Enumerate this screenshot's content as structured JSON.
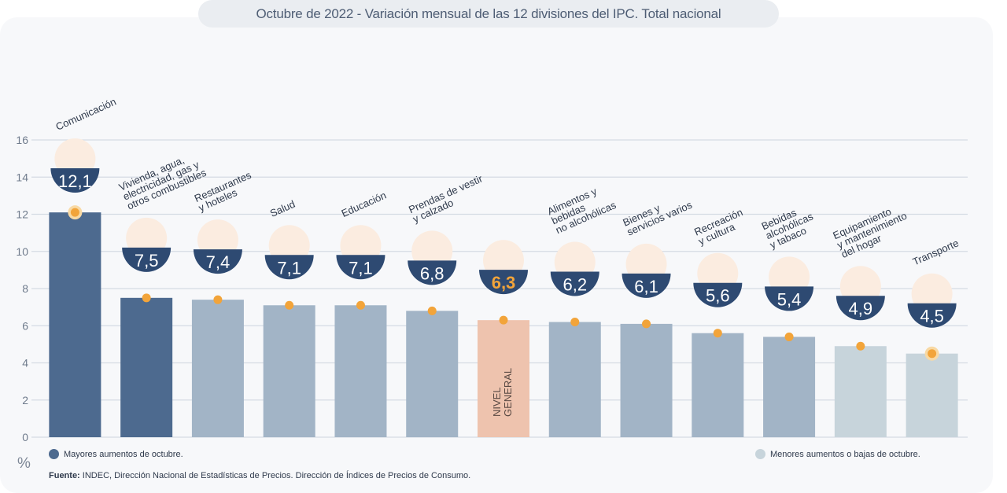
{
  "title": "Octubre de 2022 - Variación mensual de las 12 divisiones del IPC. Total nacional",
  "unit": "%",
  "legend": {
    "high": "Mayores aumentos de octubre.",
    "low": "Menores aumentos o bajas de octubre."
  },
  "source": {
    "prefix": "Fuente:",
    "text": " INDEC, Dirección Nacional de Estadísticas de Precios. Dirección de Índices de Precios de Consumo."
  },
  "colors": {
    "dark": "#4d6a8f",
    "mid": "#a2b4c6",
    "light": "#c7d4db",
    "general": "#eec3ae",
    "badge": "#2e4a72",
    "dot": "#f2a43a",
    "text": "#2f3a4c"
  },
  "chart_data": {
    "type": "bar",
    "ylim": [
      0,
      16
    ],
    "yticks": [
      0,
      2,
      4,
      6,
      8,
      10,
      12,
      14,
      16
    ],
    "grid": true,
    "legend_position": "bottom",
    "categories": [
      [
        "Comunicación"
      ],
      [
        "Vivienda, agua,",
        "electricidad, gas y",
        "otros combustibles"
      ],
      [
        "Restaurantes",
        "y hoteles"
      ],
      [
        "Salud"
      ],
      [
        "Educación"
      ],
      [
        "Prendas de vestir",
        "y calzado"
      ],
      [
        "NIVEL",
        "GENERAL"
      ],
      [
        "Alimentos y",
        "bebidas",
        "no alcohólicas"
      ],
      [
        "Bienes y",
        "servicios varios"
      ],
      [
        "Recreación",
        "y cultura"
      ],
      [
        "Bebidas",
        "alcohólicas",
        "y tabaco"
      ],
      [
        "Equipamiento",
        "y mantenimiento",
        "del hogar"
      ],
      [
        "Transporte"
      ]
    ],
    "values": [
      12.1,
      7.5,
      7.4,
      7.1,
      7.1,
      6.8,
      6.3,
      6.2,
      6.1,
      5.6,
      5.4,
      4.9,
      4.5
    ],
    "value_labels": [
      "12,1",
      "7,5",
      "7,4",
      "7,1",
      "7,1",
      "6,8",
      "6,3",
      "6,2",
      "6,1",
      "5,6",
      "5,4",
      "4,9",
      "4,5"
    ],
    "groups": [
      "dark",
      "dark",
      "mid",
      "mid",
      "mid",
      "mid",
      "general",
      "mid",
      "mid",
      "mid",
      "mid",
      "light",
      "light"
    ],
    "icons": [
      "smartphone-icon",
      "house-utilities-icon",
      "restaurant-icon",
      "health-cross-icon",
      "notebook-icon",
      "clothing-icon",
      "basket-icon",
      "food-icon",
      "scissors-comb-icon",
      "umbrella-icon",
      "wine-bottle-icon",
      "washing-machine-icon",
      "bus-card-icon"
    ]
  }
}
